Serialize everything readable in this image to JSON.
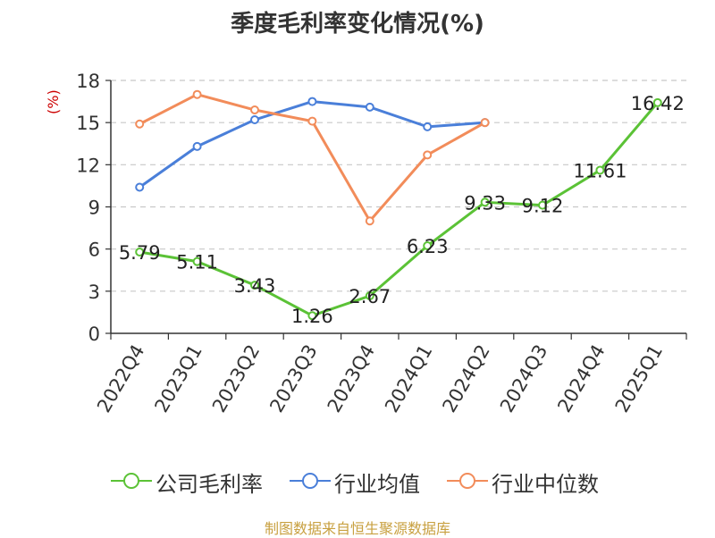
{
  "chart_data": {
    "type": "line",
    "title": "季度毛利率变化情况(%)",
    "ylabel": "(%)",
    "source": "制图数据来自恒生聚源数据库",
    "categories": [
      "2022Q4",
      "2023Q1",
      "2023Q2",
      "2023Q3",
      "2023Q4",
      "2024Q1",
      "2024Q2",
      "2024Q3",
      "2024Q4",
      "2025Q1"
    ],
    "yticks": [
      0,
      3,
      6,
      9,
      12,
      15,
      18
    ],
    "ylim": [
      0,
      18
    ],
    "grid": true,
    "legend_position": "bottom",
    "series": [
      {
        "name": "公司毛利率",
        "color": "#5bc236",
        "values": [
          5.79,
          5.11,
          3.43,
          1.26,
          2.67,
          6.23,
          9.33,
          9.12,
          11.61,
          16.42
        ],
        "labels": [
          "5.79",
          "5.11",
          "3.43",
          "1.26",
          "2.67",
          "6.23",
          "9.33",
          "9.12",
          "11.61",
          "16.42"
        ]
      },
      {
        "name": "行业均值",
        "color": "#4a7fd9",
        "values": [
          10.4,
          13.3,
          15.2,
          16.5,
          16.1,
          14.7,
          15.0,
          null,
          null,
          null
        ]
      },
      {
        "name": "行业中位数",
        "color": "#f28c5a",
        "values": [
          14.9,
          17.0,
          15.9,
          15.1,
          8.0,
          12.7,
          15.0,
          null,
          null,
          null
        ]
      }
    ]
  }
}
